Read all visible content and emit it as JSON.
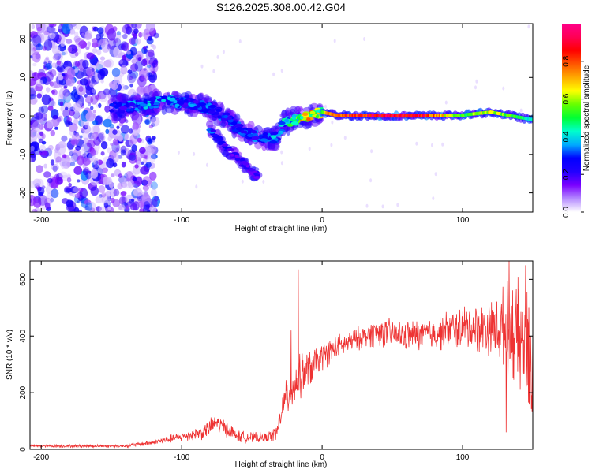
{
  "title": "S126.2025.308.00.42.G04",
  "chart_data": [
    {
      "type": "heatmap",
      "name": "spectrogram",
      "xlabel": "Height of straight line (km)",
      "ylabel": "Frequency (Hz)",
      "xlim": [
        -208,
        150
      ],
      "ylim": [
        -25,
        24
      ],
      "xticks": [
        -200,
        -100,
        0,
        100
      ],
      "yticks": [
        -20,
        -10,
        0,
        10,
        20
      ],
      "colorbar": {
        "label": "Normalized spectral amplitude",
        "range": [
          0,
          1
        ],
        "ticks": [
          "0.0",
          "0.2",
          "0.4",
          "0.6",
          "0.8"
        ],
        "colors": [
          "#ffffff",
          "#b58cff",
          "#7a00ff",
          "#2200ff",
          "#0000ff",
          "#00aaff",
          "#00ffcc",
          "#00ff33",
          "#66ff00",
          "#ffff00",
          "#ffaa00",
          "#ff5500",
          "#ff0000",
          "#ff0055",
          "#ff0088"
        ]
      },
      "ridge": [
        {
          "x": -150,
          "f": 2.0,
          "a": 0.25
        },
        {
          "x": -140,
          "f": 2.5,
          "a": 0.3
        },
        {
          "x": -130,
          "f": 2.5,
          "a": 0.35
        },
        {
          "x": -120,
          "f": 3.5,
          "a": 0.35
        },
        {
          "x": -110,
          "f": 4.0,
          "a": 0.35
        },
        {
          "x": -100,
          "f": 3.5,
          "a": 0.3
        },
        {
          "x": -90,
          "f": 3.0,
          "a": 0.3
        },
        {
          "x": -80,
          "f": 2.0,
          "a": 0.3
        },
        {
          "x": -70,
          "f": 0.0,
          "a": 0.3
        },
        {
          "x": -60,
          "f": -3.0,
          "a": 0.3
        },
        {
          "x": -50,
          "f": -5.0,
          "a": 0.3
        },
        {
          "x": -40,
          "f": -6.0,
          "a": 0.35
        },
        {
          "x": -32,
          "f": -5.5,
          "a": 0.35
        },
        {
          "x": -28,
          "f": -2.0,
          "a": 0.35
        },
        {
          "x": -20,
          "f": -1.0,
          "a": 0.55
        },
        {
          "x": -10,
          "f": 0.0,
          "a": 0.7
        },
        {
          "x": 0,
          "f": 1.0,
          "a": 0.6
        },
        {
          "x": 10,
          "f": 0.2,
          "a": 0.9
        },
        {
          "x": 40,
          "f": 0.0,
          "a": 0.95
        },
        {
          "x": 70,
          "f": 0.0,
          "a": 0.95
        },
        {
          "x": 100,
          "f": 0.2,
          "a": 0.55
        },
        {
          "x": 120,
          "f": 1.0,
          "a": 0.7
        },
        {
          "x": 150,
          "f": -1.0,
          "a": 0.45
        }
      ],
      "branch": [
        {
          "x": -80,
          "f": -3.0,
          "a": 0.3
        },
        {
          "x": -70,
          "f": -8.0,
          "a": 0.25
        },
        {
          "x": -60,
          "f": -11.0,
          "a": 0.2
        },
        {
          "x": -45,
          "f": -16.0,
          "a": 0.2
        }
      ]
    },
    {
      "type": "line",
      "name": "snr",
      "xlabel": "Height of straight line (km)",
      "ylabel": "SNR (10 * v/v)",
      "xlim": [
        -208,
        150
      ],
      "ylim": [
        0,
        665
      ],
      "xticks": [
        -200,
        -100,
        0,
        100
      ],
      "yticks": [
        0,
        200,
        400,
        600
      ],
      "color": "#ee3333",
      "envelope": {
        "x": [
          -208,
          -140,
          -120,
          -100,
          -85,
          -75,
          -60,
          -40,
          -32,
          -28,
          -22,
          -15,
          -5,
          0,
          10,
          20,
          30,
          40,
          60,
          80,
          100,
          120,
          135,
          150
        ],
        "mean": [
          12,
          12,
          25,
          45,
          60,
          95,
          45,
          40,
          60,
          160,
          210,
          260,
          300,
          330,
          360,
          380,
          400,
          415,
          400,
          410,
          430,
          430,
          430,
          300
        ],
        "spread": [
          6,
          6,
          12,
          20,
          30,
          40,
          25,
          20,
          35,
          60,
          90,
          90,
          70,
          60,
          50,
          45,
          50,
          60,
          60,
          70,
          90,
          110,
          200,
          280
        ]
      },
      "spikes": [
        {
          "x": -17,
          "y": 635
        },
        {
          "x": -22,
          "y": 420
        },
        {
          "x": 133,
          "y": 665
        },
        {
          "x": 145,
          "y": 650
        },
        {
          "x": 131,
          "y": 60
        }
      ]
    }
  ]
}
